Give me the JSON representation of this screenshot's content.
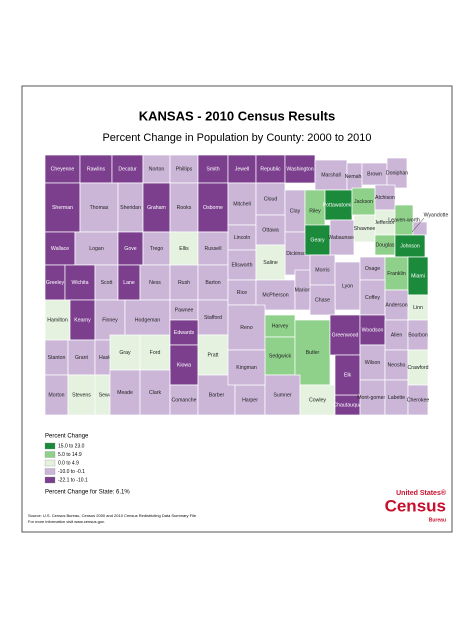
{
  "header": {
    "title": "KANSAS - 2010 Census Results",
    "subtitle": "Percent Change in Population by County:  2000 to 2010"
  },
  "counties": [
    {
      "name": "Cheyenne",
      "color": "#7b3f8e"
    },
    {
      "name": "Rawlins",
      "color": "#7b3f8e"
    },
    {
      "name": "Decatur",
      "color": "#7b3f8e"
    },
    {
      "name": "Norton",
      "color": "#cbb6d8"
    },
    {
      "name": "Phillips",
      "color": "#cbb6d8"
    },
    {
      "name": "Smith",
      "color": "#7b3f8e"
    },
    {
      "name": "Jewell",
      "color": "#7b3f8e"
    },
    {
      "name": "Republic",
      "color": "#7b3f8e"
    },
    {
      "name": "Washington",
      "color": "#7b3f8e"
    },
    {
      "name": "Marshall",
      "color": "#cbb6d8"
    },
    {
      "name": "Nemaha",
      "color": "#cbb6d8"
    },
    {
      "name": "Brown",
      "color": "#cbb6d8"
    },
    {
      "name": "Doniphan",
      "color": "#cbb6d8"
    },
    {
      "name": "Sherman",
      "color": "#7b3f8e"
    },
    {
      "name": "Thomas",
      "color": "#cbb6d8"
    },
    {
      "name": "Sheridan",
      "color": "#cbb6d8"
    },
    {
      "name": "Graham",
      "color": "#7b3f8e"
    },
    {
      "name": "Rooks",
      "color": "#cbb6d8"
    },
    {
      "name": "Osborne",
      "color": "#7b3f8e"
    },
    {
      "name": "Mitchell",
      "color": "#cbb6d8"
    },
    {
      "name": "Cloud",
      "color": "#cbb6d8"
    },
    {
      "name": "Clay",
      "color": "#cbb6d8"
    },
    {
      "name": "Riley",
      "color": "#8fd18a"
    },
    {
      "name": "Pottawatomie",
      "color": "#1b8a3a"
    },
    {
      "name": "Jackson",
      "color": "#8fd18a"
    },
    {
      "name": "Atchison",
      "color": "#cbb6d8"
    },
    {
      "name": "Jefferson",
      "color": "#e4f2df"
    },
    {
      "name": "Leaven-worth",
      "color": "#8fd18a"
    },
    {
      "name": "Wyandotte",
      "color": "#cbb6d8"
    },
    {
      "name": "Wallace",
      "color": "#7b3f8e"
    },
    {
      "name": "Logan",
      "color": "#cbb6d8"
    },
    {
      "name": "Gove",
      "color": "#7b3f8e"
    },
    {
      "name": "Trego",
      "color": "#cbb6d8"
    },
    {
      "name": "Ellis",
      "color": "#e4f2df"
    },
    {
      "name": "Russell",
      "color": "#cbb6d8"
    },
    {
      "name": "Lincoln",
      "color": "#cbb6d8"
    },
    {
      "name": "Ottawa",
      "color": "#cbb6d8"
    },
    {
      "name": "Dickinson",
      "color": "#cbb6d8"
    },
    {
      "name": "Geary",
      "color": "#1b8a3a"
    },
    {
      "name": "Wabaunsee",
      "color": "#cbb6d8"
    },
    {
      "name": "Shawnee",
      "color": "#e4f2df"
    },
    {
      "name": "Douglas",
      "color": "#8fd18a"
    },
    {
      "name": "Johnson",
      "color": "#1b8a3a"
    },
    {
      "name": "Greeley",
      "color": "#7b3f8e"
    },
    {
      "name": "Wichita",
      "color": "#7b3f8e"
    },
    {
      "name": "Scott",
      "color": "#cbb6d8"
    },
    {
      "name": "Lane",
      "color": "#7b3f8e"
    },
    {
      "name": "Ness",
      "color": "#cbb6d8"
    },
    {
      "name": "Rush",
      "color": "#cbb6d8"
    },
    {
      "name": "Barton",
      "color": "#cbb6d8"
    },
    {
      "name": "Ellsworth",
      "color": "#cbb6d8"
    },
    {
      "name": "Saline",
      "color": "#e4f2df"
    },
    {
      "name": "Morris",
      "color": "#cbb6d8"
    },
    {
      "name": "Lyon",
      "color": "#cbb6d8"
    },
    {
      "name": "Osage",
      "color": "#cbb6d8"
    },
    {
      "name": "Franklin",
      "color": "#8fd18a"
    },
    {
      "name": "Miami",
      "color": "#1b8a3a"
    },
    {
      "name": "Hamilton",
      "color": "#e4f2df"
    },
    {
      "name": "Kearny",
      "color": "#7b3f8e"
    },
    {
      "name": "Finney",
      "color": "#cbb6d8"
    },
    {
      "name": "Hodgeman",
      "color": "#cbb6d8"
    },
    {
      "name": "Pawnee",
      "color": "#cbb6d8"
    },
    {
      "name": "Stafford",
      "color": "#cbb6d8"
    },
    {
      "name": "Rice",
      "color": "#cbb6d8"
    },
    {
      "name": "McPherson",
      "color": "#cbb6d8"
    },
    {
      "name": "Marion",
      "color": "#cbb6d8"
    },
    {
      "name": "Chase",
      "color": "#cbb6d8"
    },
    {
      "name": "Coffey",
      "color": "#cbb6d8"
    },
    {
      "name": "Anderson",
      "color": "#cbb6d8"
    },
    {
      "name": "Linn",
      "color": "#e4f2df"
    },
    {
      "name": "Stanton",
      "color": "#cbb6d8"
    },
    {
      "name": "Grant",
      "color": "#cbb6d8"
    },
    {
      "name": "Haskell",
      "color": "#cbb6d8"
    },
    {
      "name": "Gray",
      "color": "#e4f2df"
    },
    {
      "name": "Ford",
      "color": "#e4f2df"
    },
    {
      "name": "Edwards",
      "color": "#7b3f8e"
    },
    {
      "name": "Kiowa",
      "color": "#7b3f8e"
    },
    {
      "name": "Pratt",
      "color": "#e4f2df"
    },
    {
      "name": "Reno",
      "color": "#cbb6d8"
    },
    {
      "name": "Harvey",
      "color": "#8fd18a"
    },
    {
      "name": "Sedgwick",
      "color": "#8fd18a"
    },
    {
      "name": "Butler",
      "color": "#8fd18a"
    },
    {
      "name": "Greenwood",
      "color": "#7b3f8e"
    },
    {
      "name": "Woodson",
      "color": "#7b3f8e"
    },
    {
      "name": "Allen",
      "color": "#cbb6d8"
    },
    {
      "name": "Bourbon",
      "color": "#cbb6d8"
    },
    {
      "name": "Morton",
      "color": "#cbb6d8"
    },
    {
      "name": "Stevens",
      "color": "#e4f2df"
    },
    {
      "name": "Seward",
      "color": "#e4f2df"
    },
    {
      "name": "Meade",
      "color": "#cbb6d8"
    },
    {
      "name": "Clark",
      "color": "#cbb6d8"
    },
    {
      "name": "Comanche",
      "color": "#cbb6d8"
    },
    {
      "name": "Barber",
      "color": "#cbb6d8"
    },
    {
      "name": "Harper",
      "color": "#cbb6d8"
    },
    {
      "name": "Sumner",
      "color": "#cbb6d8"
    },
    {
      "name": "Cowley",
      "color": "#e4f2df"
    },
    {
      "name": "Chautauqua",
      "color": "#7b3f8e"
    },
    {
      "name": "Elk",
      "color": "#7b3f8e"
    },
    {
      "name": "Wilson",
      "color": "#cbb6d8"
    },
    {
      "name": "Neosho",
      "color": "#cbb6d8"
    },
    {
      "name": "Mont-gomery",
      "color": "#cbb6d8"
    },
    {
      "name": "Labette",
      "color": "#cbb6d8"
    },
    {
      "name": "Crawford",
      "color": "#e4f2df"
    },
    {
      "name": "Cherokee",
      "color": "#cbb6d8"
    },
    {
      "name": "Kingman",
      "color": "#cbb6d8"
    }
  ],
  "legend": {
    "title": "Percent Change",
    "items": [
      {
        "label": "15.0 to 23.0",
        "color": "#1b8a3a"
      },
      {
        "label": "5.0 to 14.9",
        "color": "#8fd18a"
      },
      {
        "label": "0.0 to 4.9",
        "color": "#e4f2df"
      },
      {
        "label": "-10.0 to -0.1",
        "color": "#cbb6d8"
      },
      {
        "label": "-22.1 to -10.1",
        "color": "#7b3f8e"
      }
    ],
    "state_change": "Percent Change for State:  6.1%"
  },
  "logo": {
    "line1": "United States®",
    "line2": "Census",
    "line3": "Bureau"
  },
  "source": {
    "line1": "Source:  U.S. Census Bureau, Census 2000 and 2010 Census Redistricting Data Summary File",
    "line2": "For more information visit www.census.gov."
  }
}
